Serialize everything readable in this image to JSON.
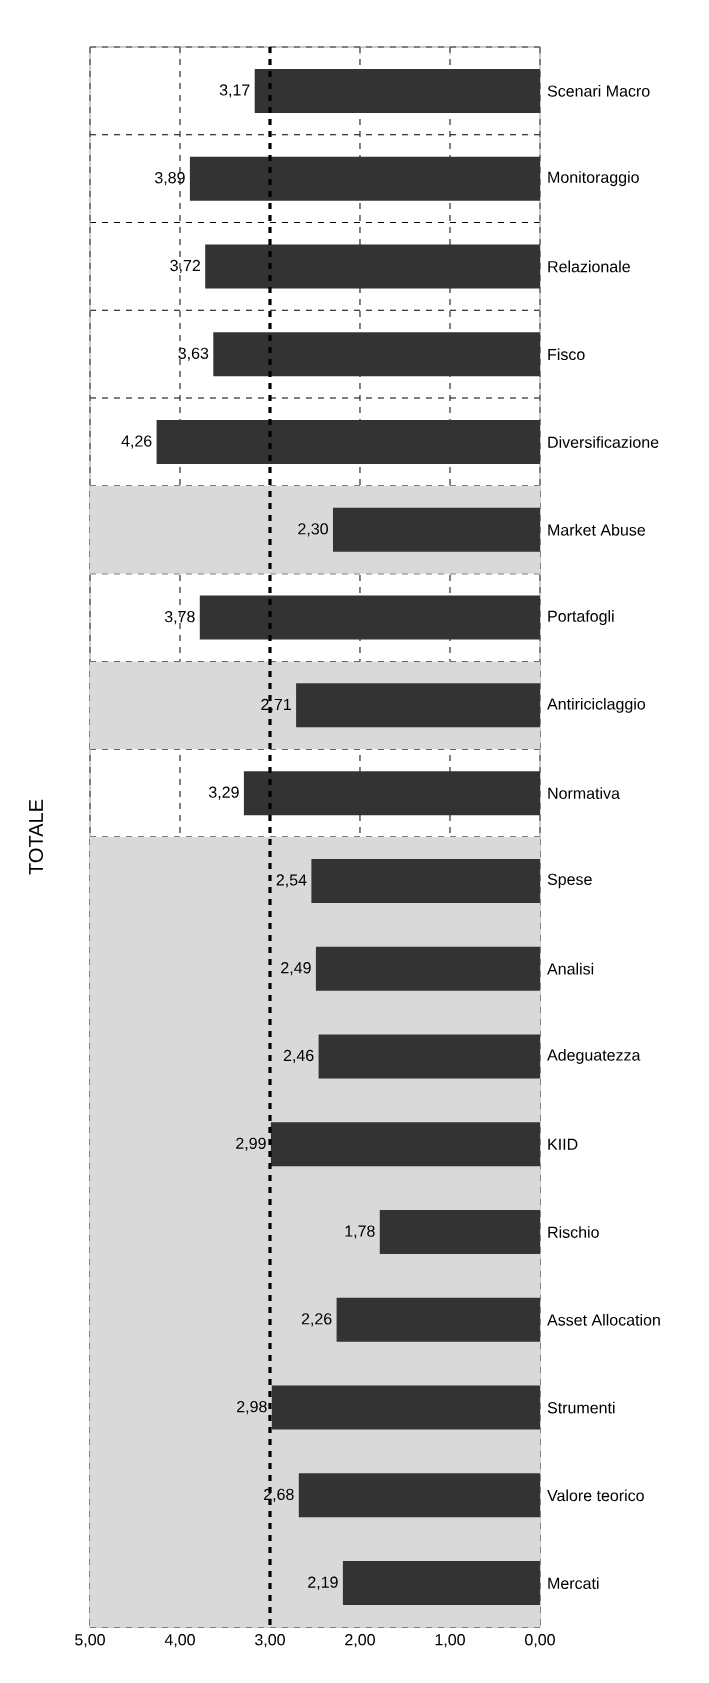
{
  "chart_data": {
    "type": "bar",
    "title": "TOTALE",
    "orientation": "horizontal",
    "categories": [
      "Scenari Macro",
      "Monitoraggio",
      "Relazionale",
      "Fisco",
      "Diversificazione",
      "Market Abuse",
      "Portafogli",
      "Antiriciclaggio",
      "Normativa",
      "Spese",
      "Analisi",
      "Adeguatezza",
      "KIID",
      "Rischio",
      "Asset Allocation",
      "Strumenti",
      "Valore teorico",
      "Mercati"
    ],
    "values": [
      3.17,
      3.89,
      3.72,
      3.63,
      4.26,
      2.3,
      3.78,
      2.71,
      3.29,
      2.54,
      2.49,
      2.46,
      2.99,
      1.78,
      2.26,
      2.98,
      2.68,
      2.19
    ],
    "value_labels": [
      "3,17",
      "3,89",
      "3,72",
      "3,63",
      "4,26",
      "2,30",
      "3,78",
      "2,71",
      "3,29",
      "2,54",
      "2,49",
      "2,46",
      "2,99",
      "1,78",
      "2,26",
      "2,98",
      "2,68",
      "2,19"
    ],
    "color": "#333333",
    "xlim": [
      5,
      0
    ],
    "xticks": [
      {
        "value": 5,
        "label": "5,00"
      },
      {
        "value": 4,
        "label": "4,00"
      },
      {
        "value": 3,
        "label": "3,00"
      },
      {
        "value": 2,
        "label": "2,00"
      },
      {
        "value": 1,
        "label": "1,00"
      },
      {
        "value": 0,
        "label": "0,00"
      }
    ],
    "grid": true,
    "ref_lines": [
      {
        "axis": "x",
        "value": 3,
        "line_style": "dashed",
        "color": "#000000"
      }
    ],
    "bands": [
      {
        "axis": "y",
        "from": "Market Abuse",
        "to": "Market Abuse",
        "color": "#d9d9d9"
      },
      {
        "axis": "y",
        "from": "Antiriciclaggio",
        "to": "Antiriciclaggio",
        "color": "#d9d9d9"
      },
      {
        "axis": "y",
        "from": "Spese",
        "to": "Mercati",
        "color": "#d9d9d9"
      }
    ]
  }
}
